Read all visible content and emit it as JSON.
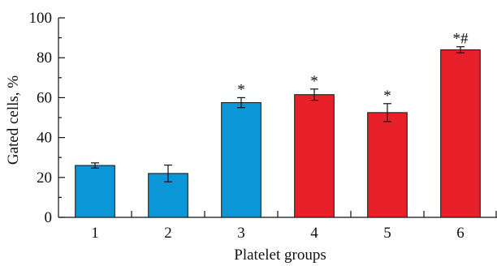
{
  "chart_data": {
    "type": "bar",
    "title": "",
    "xlabel": "Platelet groups",
    "ylabel": "Gated cells, %",
    "ylim": [
      0,
      100
    ],
    "yticks": [
      "0",
      "20",
      "40",
      "60",
      "80",
      "100"
    ],
    "categories": [
      "1",
      "2",
      "3",
      "4",
      "5",
      "6"
    ],
    "values": [
      26,
      22,
      57.5,
      61.5,
      52.5,
      84
    ],
    "errors": [
      1.3,
      4.2,
      2.5,
      2.8,
      4.5,
      1.5
    ],
    "bar_colors": [
      "#0a96d7",
      "#0a96d7",
      "#0a96d7",
      "#e8202a",
      "#e8202a",
      "#e8202a"
    ],
    "annotations": [
      "",
      "",
      "*",
      "*",
      "*",
      "*#"
    ],
    "grid": false,
    "legend": "none"
  }
}
